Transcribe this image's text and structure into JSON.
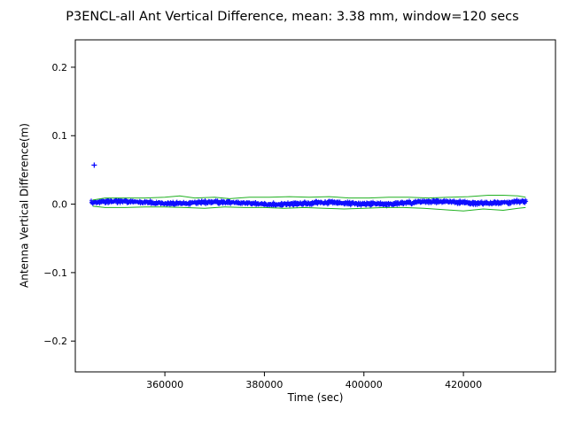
{
  "chart_data": {
    "type": "scatter",
    "title": "P3ENCL-all Ant Vertical Difference, mean: 3.38 mm, window=120 secs",
    "xlabel": "Time (sec)",
    "ylabel": "Antenna Vertical Difference(m)",
    "xlim": [
      342000,
      438500
    ],
    "ylim": [
      -0.245,
      0.24
    ],
    "xticks": [
      360000,
      380000,
      400000,
      420000
    ],
    "yticks": [
      -0.2,
      -0.1,
      0.0,
      0.1,
      0.2
    ],
    "grid": false,
    "legend": "none",
    "mean_mm": 3.38,
    "window_secs": 120,
    "colors": {
      "marker": "#0000ff",
      "envelope": "#21b121",
      "axes": "#000000"
    },
    "series": [
      {
        "name": "vertical-difference-band",
        "type": "scatter-band",
        "marker": "+",
        "color": "#0000ff",
        "x_start": 345200,
        "x_end": 432600,
        "n_points": 1500,
        "y_center": 0.0018,
        "y_spread": 0.0042,
        "seed": 77
      },
      {
        "name": "outlier-point",
        "type": "scatter",
        "marker": "+",
        "color": "#0000ff",
        "points": [
          [
            345800,
            0.057
          ]
        ]
      },
      {
        "name": "upper-envelope",
        "type": "line",
        "color": "#21b121",
        "points": [
          [
            345500,
            0.006
          ],
          [
            348000,
            0.009
          ],
          [
            352000,
            0.009
          ],
          [
            356000,
            0.009
          ],
          [
            360000,
            0.01
          ],
          [
            363000,
            0.012
          ],
          [
            366000,
            0.009
          ],
          [
            370000,
            0.01
          ],
          [
            373000,
            0.008
          ],
          [
            377000,
            0.01
          ],
          [
            381000,
            0.01
          ],
          [
            385000,
            0.011
          ],
          [
            389000,
            0.01
          ],
          [
            393000,
            0.011
          ],
          [
            397000,
            0.009
          ],
          [
            401000,
            0.009
          ],
          [
            405000,
            0.01
          ],
          [
            409000,
            0.01
          ],
          [
            413000,
            0.009
          ],
          [
            417000,
            0.01
          ],
          [
            421000,
            0.011
          ],
          [
            425000,
            0.013
          ],
          [
            428000,
            0.013
          ],
          [
            431000,
            0.012
          ],
          [
            432500,
            0.01
          ]
        ]
      },
      {
        "name": "lower-envelope",
        "type": "line",
        "color": "#21b121",
        "points": [
          [
            345500,
            -0.003
          ],
          [
            348000,
            -0.005
          ],
          [
            352000,
            -0.005
          ],
          [
            356000,
            -0.004
          ],
          [
            360000,
            -0.004
          ],
          [
            364000,
            -0.005
          ],
          [
            368000,
            -0.006
          ],
          [
            372000,
            -0.004
          ],
          [
            376000,
            -0.005
          ],
          [
            380000,
            -0.005
          ],
          [
            384000,
            -0.006
          ],
          [
            388000,
            -0.005
          ],
          [
            392000,
            -0.006
          ],
          [
            396000,
            -0.007
          ],
          [
            400000,
            -0.006
          ],
          [
            404000,
            -0.005
          ],
          [
            408000,
            -0.005
          ],
          [
            412000,
            -0.006
          ],
          [
            416000,
            -0.008
          ],
          [
            420000,
            -0.01
          ],
          [
            424000,
            -0.007
          ],
          [
            428000,
            -0.009
          ],
          [
            431000,
            -0.006
          ],
          [
            432500,
            -0.005
          ]
        ]
      }
    ]
  }
}
